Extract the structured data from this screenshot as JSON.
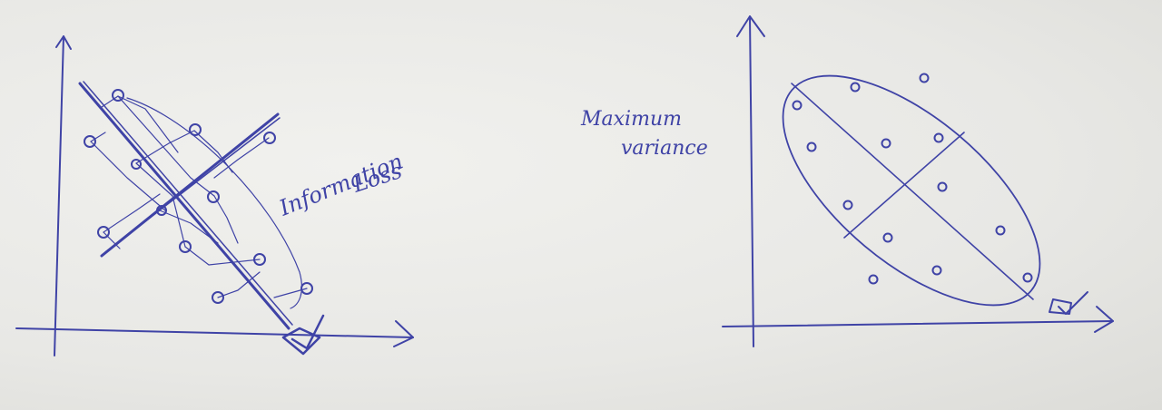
{
  "left_figure": {
    "label_line1": "Information",
    "label_line2": "Loss"
  },
  "right_figure": {
    "label_line1": "Maximum",
    "label_line2": "variance"
  },
  "ink_color": "#3f43a6"
}
